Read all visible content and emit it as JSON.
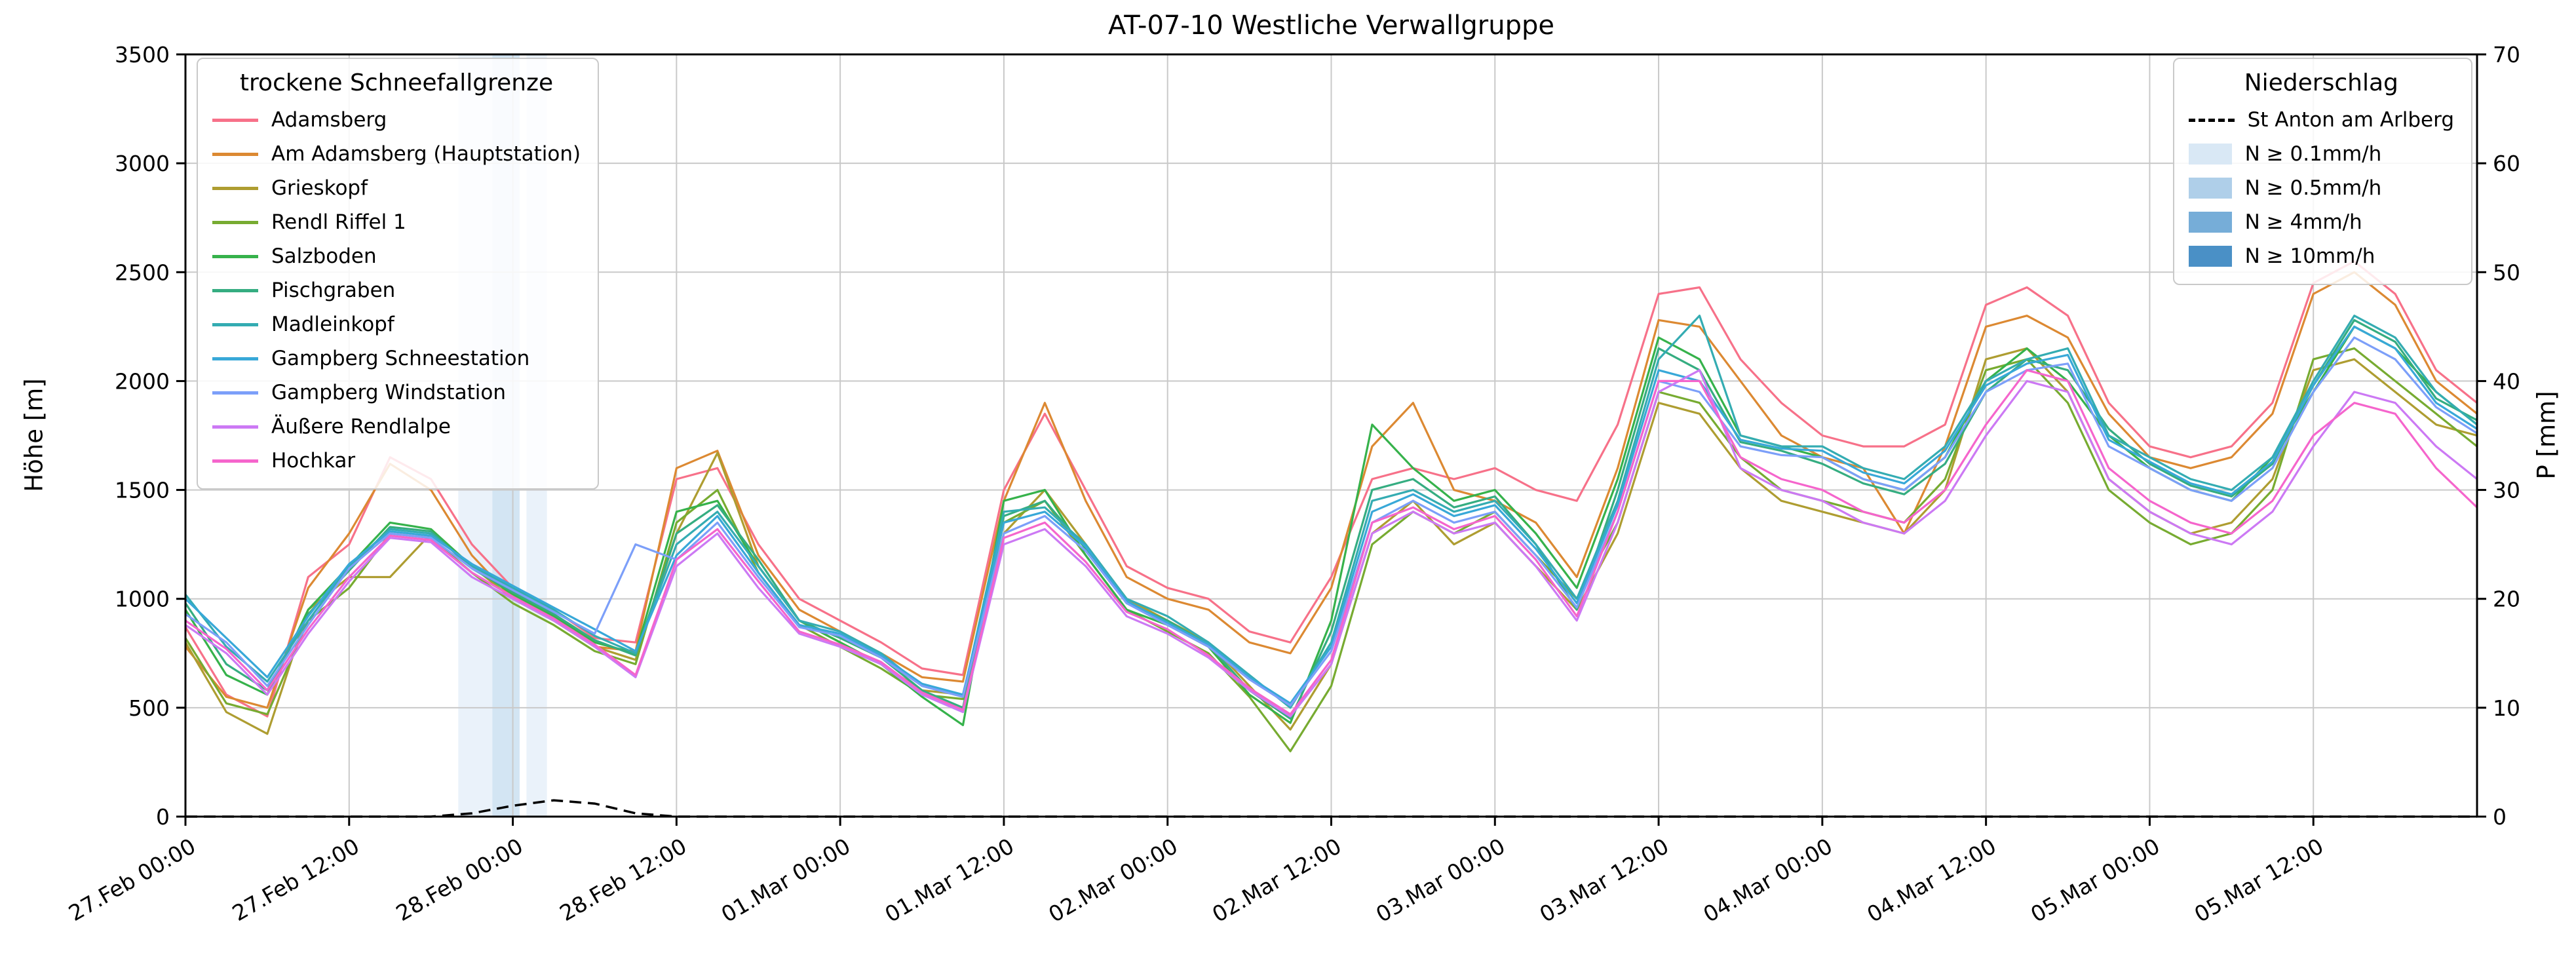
{
  "legend_snow": {
    "title": "trockene Schneefallgrenze"
  },
  "legend_precip": {
    "title": "Niederschlag"
  },
  "chart_data": {
    "type": "line",
    "title": "AT-07-10 Westliche Verwallgruppe",
    "x": {
      "start_h": 0,
      "end_h": 168,
      "step_h": 3,
      "tick_step_h": 12,
      "tick_labels": [
        "27.Feb 00:00",
        "27.Feb 12:00",
        "28.Feb 00:00",
        "28.Feb 12:00",
        "01.Mar 00:00",
        "01.Mar 12:00",
        "02.Mar 00:00",
        "02.Mar 12:00",
        "03.Mar 00:00",
        "03.Mar 12:00",
        "04.Mar 00:00",
        "04.Mar 12:00",
        "05.Mar 00:00",
        "05.Mar 12:00"
      ]
    },
    "y_left": {
      "label": "Höhe [m]",
      "min": 0,
      "max": 3500,
      "step": 500
    },
    "y_right": {
      "label": "P [mm]",
      "min": 0,
      "max": 70,
      "step": 10
    },
    "grid": true,
    "series": [
      {
        "name": "Adamsberg",
        "color": "#f77189",
        "values": [
          870,
          560,
          460,
          1100,
          1250,
          1650,
          1550,
          1250,
          1050,
          950,
          820,
          800,
          1550,
          1600,
          1250,
          1000,
          900,
          800,
          680,
          650,
          1500,
          1850,
          1500,
          1150,
          1050,
          1000,
          850,
          800,
          1100,
          1550,
          1600,
          1550,
          1600,
          1500,
          1450,
          1800,
          2400,
          2430,
          2100,
          1900,
          1750,
          1700,
          1700,
          1800,
          2350,
          2430,
          2300,
          1900,
          1700,
          1650,
          1700,
          1900,
          2450,
          2550,
          2400,
          2050,
          1900
        ]
      },
      {
        "name": "Am Adamsberg (Hauptstation)",
        "color": "#dc8932",
        "values": [
          780,
          550,
          500,
          1050,
          1300,
          1620,
          1500,
          1200,
          1000,
          900,
          780,
          760,
          1600,
          1680,
          1200,
          950,
          850,
          750,
          640,
          620,
          1450,
          1900,
          1450,
          1100,
          1000,
          950,
          800,
          750,
          1050,
          1700,
          1900,
          1500,
          1450,
          1350,
          1100,
          1600,
          2280,
          2250,
          2000,
          1750,
          1650,
          1600,
          1300,
          1700,
          2250,
          2300,
          2200,
          1850,
          1650,
          1600,
          1650,
          1850,
          2400,
          2500,
          2350,
          2000,
          1850
        ]
      },
      {
        "name": "Grieskopf",
        "color": "#ae9d31",
        "values": [
          800,
          480,
          380,
          950,
          1100,
          1100,
          1300,
          1150,
          1000,
          900,
          780,
          720,
          1300,
          1670,
          1150,
          900,
          800,
          700,
          580,
          560,
          1300,
          1500,
          1250,
          1000,
          900,
          800,
          600,
          400,
          700,
          1300,
          1450,
          1250,
          1350,
          1150,
          950,
          1300,
          1900,
          1850,
          1600,
          1450,
          1400,
          1350,
          1300,
          1500,
          2100,
          2150,
          1950,
          1550,
          1400,
          1300,
          1350,
          1550,
          2050,
          2100,
          1950,
          1800,
          1750
        ]
      },
      {
        "name": "Rendl Riffel 1",
        "color": "#77ab31",
        "values": [
          820,
          520,
          470,
          900,
          1050,
          1300,
          1280,
          1120,
          980,
          880,
          760,
          700,
          1350,
          1500,
          1120,
          880,
          780,
          680,
          560,
          540,
          1350,
          1450,
          1200,
          950,
          850,
          750,
          550,
          300,
          600,
          1250,
          1400,
          1300,
          1400,
          1200,
          1000,
          1350,
          1950,
          1900,
          1650,
          1500,
          1450,
          1400,
          1350,
          1550,
          2050,
          2100,
          1900,
          1500,
          1350,
          1250,
          1300,
          1500,
          2100,
          2150,
          2000,
          1850,
          1700
        ]
      },
      {
        "name": "Salzboden",
        "color": "#36b24b",
        "values": [
          950,
          650,
          560,
          950,
          1150,
          1350,
          1320,
          1150,
          1020,
          920,
          800,
          750,
          1400,
          1450,
          1150,
          900,
          800,
          700,
          550,
          420,
          1450,
          1500,
          1200,
          950,
          880,
          780,
          560,
          430,
          900,
          1800,
          1600,
          1450,
          1500,
          1300,
          1050,
          1550,
          2200,
          2100,
          1750,
          1700,
          1650,
          1550,
          1500,
          1650,
          2000,
          2150,
          2000,
          1750,
          1600,
          1500,
          1450,
          1650,
          1950,
          2250,
          2150,
          1950,
          1800
        ]
      },
      {
        "name": "Pischgraben",
        "color": "#35ad81",
        "values": [
          980,
          700,
          580,
          930,
          1130,
          1330,
          1310,
          1140,
          1030,
          930,
          810,
          740,
          1300,
          1430,
          1180,
          900,
          820,
          730,
          580,
          500,
          1380,
          1450,
          1230,
          980,
          900,
          790,
          580,
          450,
          850,
          1500,
          1550,
          1420,
          1470,
          1250,
          950,
          1500,
          2150,
          2050,
          1720,
          1680,
          1620,
          1530,
          1480,
          1620,
          1950,
          2100,
          2050,
          1780,
          1620,
          1520,
          1470,
          1620,
          1980,
          2280,
          2180,
          1920,
          1820
        ]
      },
      {
        "name": "Madleinkopf",
        "color": "#34acb2",
        "values": [
          1020,
          780,
          620,
          900,
          1150,
          1320,
          1300,
          1150,
          1050,
          950,
          830,
          750,
          1250,
          1400,
          1150,
          900,
          850,
          750,
          600,
          550,
          1400,
          1420,
          1250,
          1000,
          920,
          800,
          650,
          500,
          800,
          1450,
          1500,
          1400,
          1450,
          1250,
          1000,
          1450,
          2100,
          2300,
          1750,
          1700,
          1700,
          1600,
          1550,
          1700,
          2000,
          2100,
          2150,
          1750,
          1650,
          1550,
          1500,
          1650,
          2000,
          2300,
          2200,
          1950,
          1800
        ]
      },
      {
        "name": "Gampberg Schneestation",
        "color": "#38a8d8",
        "values": [
          1000,
          820,
          640,
          920,
          1160,
          1310,
          1290,
          1160,
          1060,
          960,
          860,
          760,
          1200,
          1380,
          1120,
          880,
          840,
          740,
          610,
          560,
          1350,
          1400,
          1240,
          990,
          890,
          790,
          640,
          520,
          780,
          1400,
          1480,
          1380,
          1430,
          1230,
          980,
          1430,
          2050,
          2000,
          1730,
          1690,
          1680,
          1580,
          1530,
          1680,
          1980,
          2080,
          2120,
          1730,
          1630,
          1530,
          1480,
          1630,
          1980,
          2250,
          2150,
          1900,
          1780
        ]
      },
      {
        "name": "Gampberg Windstation",
        "color": "#7c9ff9",
        "values": [
          930,
          800,
          600,
          880,
          1140,
          1300,
          1280,
          1140,
          1040,
          940,
          840,
          1250,
          1180,
          1350,
          1100,
          870,
          830,
          730,
          600,
          550,
          1300,
          1380,
          1220,
          980,
          880,
          780,
          630,
          510,
          760,
          1350,
          1450,
          1350,
          1400,
          1200,
          960,
          1400,
          2000,
          1950,
          1700,
          1660,
          1650,
          1550,
          1500,
          1650,
          1950,
          2050,
          2080,
          1700,
          1600,
          1500,
          1450,
          1600,
          1950,
          2200,
          2100,
          1880,
          1760
        ]
      },
      {
        "name": "Äußere Rendlalpe",
        "color": "#cc79f4",
        "values": [
          880,
          750,
          560,
          840,
          1080,
          1280,
          1260,
          1100,
          1000,
          900,
          780,
          640,
          1150,
          1300,
          1050,
          840,
          780,
          700,
          560,
          480,
          1250,
          1320,
          1150,
          920,
          840,
          730,
          580,
          460,
          700,
          1300,
          1400,
          1300,
          1350,
          1150,
          900,
          1350,
          1950,
          2050,
          1600,
          1500,
          1450,
          1350,
          1300,
          1450,
          1750,
          2000,
          1950,
          1550,
          1400,
          1300,
          1250,
          1400,
          1700,
          1950,
          1900,
          1700,
          1550
        ]
      },
      {
        "name": "Hochkar",
        "color": "#f565cc",
        "values": [
          900,
          770,
          580,
          860,
          1100,
          1290,
          1270,
          1120,
          1010,
          910,
          790,
          650,
          1180,
          1320,
          1080,
          850,
          790,
          710,
          570,
          490,
          1280,
          1350,
          1170,
          940,
          860,
          740,
          590,
          470,
          720,
          1350,
          1420,
          1320,
          1380,
          1180,
          920,
          1400,
          2000,
          2000,
          1650,
          1550,
          1500,
          1400,
          1350,
          1500,
          1800,
          2050,
          2000,
          1600,
          1450,
          1350,
          1300,
          1450,
          1750,
          1900,
          1850,
          1600,
          1420
        ]
      }
    ],
    "precipitation": {
      "name": "St Anton am Arlberg",
      "color": "#000000",
      "style": "dashed",
      "axis": "right",
      "values": [
        0,
        0,
        0,
        0,
        0,
        0,
        0,
        0.3,
        1,
        1.5,
        1.2,
        0.3,
        0,
        0,
        0,
        0,
        0,
        0,
        0,
        0,
        0,
        0,
        0,
        0,
        0,
        0,
        0,
        0,
        0,
        0,
        0,
        0,
        0,
        0,
        0,
        0,
        0,
        0,
        0,
        0,
        0,
        0,
        0,
        0,
        0,
        0,
        0,
        0,
        0,
        0,
        0,
        0,
        0,
        0,
        0,
        0,
        0
      ]
    },
    "precip_levels": [
      {
        "label": "N ≥ 0.1mm/h",
        "color": "#d9e8f5"
      },
      {
        "label": "N ≥ 0.5mm/h",
        "color": "#afcfe9"
      },
      {
        "label": "N ≥ 4mm/h",
        "color": "#76add8"
      },
      {
        "label": "N ≥ 10mm/h",
        "color": "#4a90c6"
      }
    ],
    "precip_bands": [
      {
        "start_h": 20,
        "end_h": 22.5,
        "level": 0
      },
      {
        "start_h": 22.5,
        "end_h": 24.5,
        "level": 1
      },
      {
        "start_h": 25,
        "end_h": 26.5,
        "level": 0
      }
    ]
  }
}
